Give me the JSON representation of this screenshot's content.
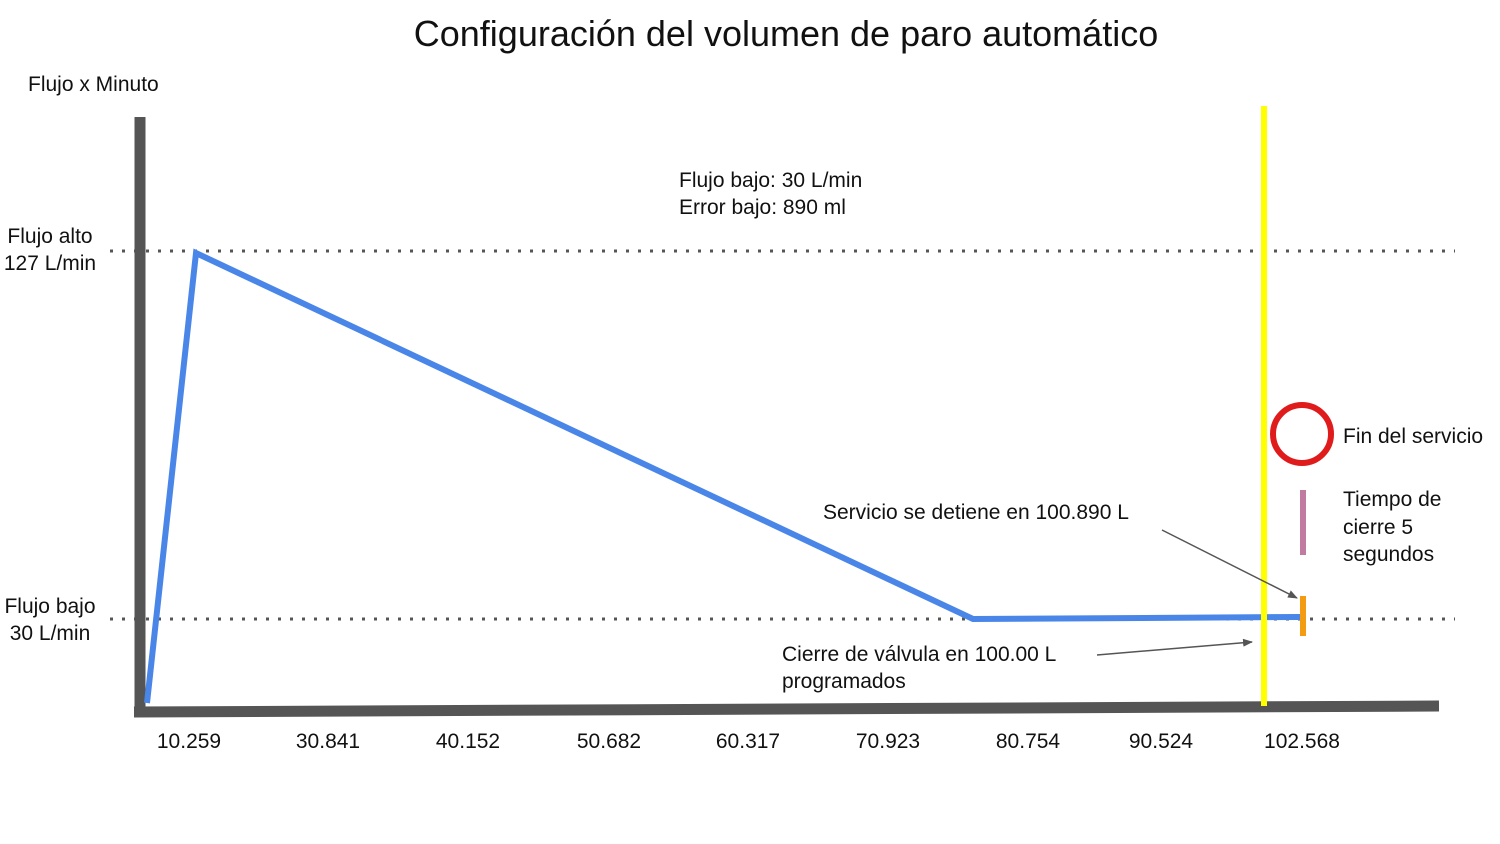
{
  "diagram": {
    "title": "Configuración del volumen de paro automático",
    "y_axis_label": "Flujo x Minuto",
    "levels": {
      "high": {
        "name": "Flujo alto",
        "value_text": "127 L/min",
        "value": 127
      },
      "low": {
        "name": "Flujo bajo",
        "value_text": "30 L/min",
        "value": 30
      }
    },
    "info_box": {
      "line1": "Flujo bajo: 30 L/min",
      "line2": "Error bajo: 890 ml"
    },
    "x_ticks": [
      "10.259",
      "30.841",
      "40.152",
      "50.682",
      "60.317",
      "70.923",
      "80.754",
      "90.524",
      "102.568"
    ],
    "annotations": {
      "stop": "Servicio se detiene en 100.890 L",
      "valve_line1": "Cierre de válvula en 100.00 L",
      "valve_line2": "programados",
      "end": "Fin del servicio",
      "closing_line1": "Tiempo de",
      "closing_line2": "cierre 5",
      "closing_line3": "segundos"
    },
    "colors": {
      "axis": "#555555",
      "flow_line": "#4a86e8",
      "valve_marker": "#ffff00",
      "end_circle": "#e01b1b",
      "closing_bar": "#c27ba0",
      "stop_marker": "#f39c12",
      "guide_dots": "#555555",
      "arrow": "#555555"
    }
  }
}
